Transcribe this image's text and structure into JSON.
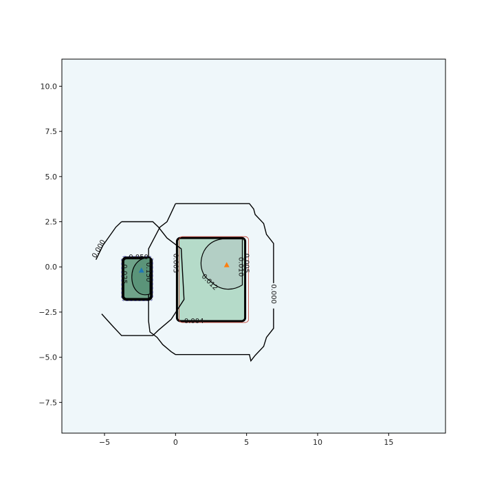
{
  "chart_data": {
    "type": "contour",
    "title": "",
    "xlabel": "",
    "ylabel": "",
    "xlim": [
      -8,
      19
    ],
    "ylim": [
      -9.2,
      11.5
    ],
    "xticks": [
      -5,
      0,
      5,
      10,
      15
    ],
    "xtick_labels": [
      "−5",
      "0",
      "5",
      "10",
      "15"
    ],
    "yticks": [
      -7.5,
      -5.0,
      -2.5,
      0.0,
      2.5,
      5.0,
      7.5,
      10.0
    ],
    "ytick_labels": [
      "−7.5",
      "−5.0",
      "−2.5",
      "0.0",
      "2.5",
      "5.0",
      "7.5",
      "10.0"
    ],
    "grid": false,
    "colors": {
      "background": "#eff7fa",
      "left_region_fill": "#6fa389",
      "left_core_fill": "#5b9479",
      "right_region_fill": "#b5dbc9",
      "right_core_fill": "#b3cfc5",
      "contour_line": "#000000",
      "left_marker": "#1f77b4",
      "right_marker": "#ff7f0e"
    },
    "markers": [
      {
        "name": "left",
        "x": -2.4,
        "y": -0.2,
        "shape": "triangle"
      },
      {
        "name": "right",
        "x": 3.6,
        "y": 0.1,
        "shape": "triangle"
      }
    ],
    "regions": [
      {
        "name": "left-rect",
        "x0": -3.7,
        "x1": -1.7,
        "y0": -1.8,
        "y1": 0.5
      },
      {
        "name": "right-rect",
        "x0": 0.1,
        "x1": 4.9,
        "y0": -3.0,
        "y1": 1.6
      }
    ],
    "contour_levels": [
      {
        "label": "0.000",
        "x": -5.4,
        "y": 1.0,
        "rotation": -60
      },
      {
        "label": "0.000",
        "x": 6.9,
        "y": -1.5,
        "rotation": 90
      },
      {
        "label": "0.050",
        "x": -2.6,
        "y": 0.55,
        "rotation": 0
      },
      {
        "label": "0.150",
        "x": -1.9,
        "y": -0.3,
        "rotation": 90
      },
      {
        "label": "0.025",
        "x": -3.6,
        "y": -0.4,
        "rotation": 90
      },
      {
        "label": "0.003",
        "x": 0.0,
        "y": 0.2,
        "rotation": 90
      },
      {
        "label": "0.012",
        "x": 2.4,
        "y": -0.85,
        "rotation": 45
      },
      {
        "label": "0.010",
        "x": 4.6,
        "y": 0.0,
        "rotation": 90
      },
      {
        "label": "0.005",
        "x": 5.0,
        "y": 0.2,
        "rotation": 90
      },
      {
        "label": "0.004",
        "x": 1.3,
        "y": -3.0,
        "rotation": 0
      }
    ]
  }
}
